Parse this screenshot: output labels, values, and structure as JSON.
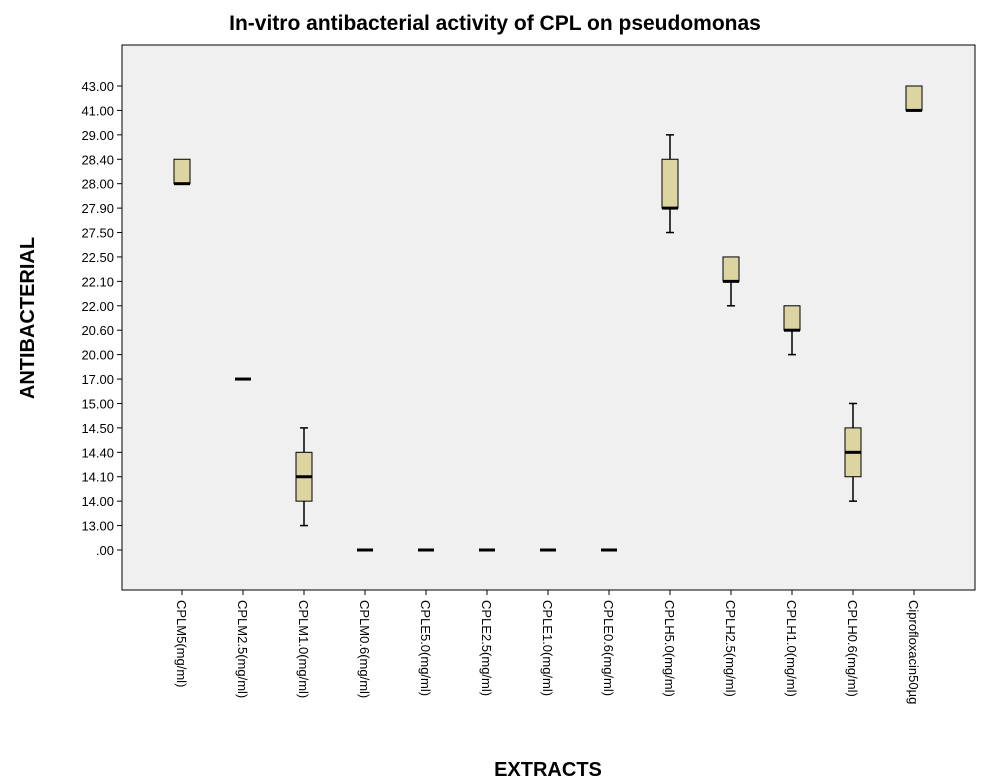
{
  "chart_data": {
    "type": "box",
    "title": "In-vitro antibacterial activity of CPL on pseudomonas",
    "x_label": "EXTRACTS",
    "y_label": "ANTIBACTERIAL",
    "categories": [
      "CPLM5(mg/ml)",
      "CPLM2.5(mg/ml)",
      "CPLM1.0(mg/ml)",
      "CPLM0.6(mg/ml)",
      "CPLE5.0(mg/ml)",
      "CPLE2.5(mg/ml)",
      "CPLE1.0(mg/ml)",
      "CPLE0.6(mg/ml)",
      "CPLH5.0(mg/ml)",
      "CPLH2.5(mg/ml)",
      "CPLH1.0(mg/ml)",
      "CPLH0.6(mg/ml)",
      "Ciprofloxacin50µg"
    ],
    "min": [
      28,
      17,
      13,
      0,
      0,
      0,
      0,
      0,
      27.5,
      22.0,
      20.0,
      14.0,
      41
    ],
    "q1": [
      28,
      17,
      14.0,
      0,
      0,
      0,
      0,
      0,
      27.9,
      22.1,
      20.6,
      14.1,
      41
    ],
    "median": [
      28,
      17,
      14.1,
      0,
      0,
      0,
      0,
      0,
      27.9,
      22.1,
      20.6,
      14.4,
      41
    ],
    "q3": [
      28.4,
      17,
      14.4,
      0,
      0,
      0,
      0,
      0,
      28.4,
      22.5,
      22.0,
      14.5,
      43
    ],
    "max": [
      28.4,
      17,
      14.5,
      0,
      0,
      0,
      0,
      0,
      29.0,
      22.5,
      22.0,
      15.0,
      43
    ],
    "color": "#dcd5a2",
    "yticks": [
      {
        "value": 0,
        "label": ".00"
      },
      {
        "value": 13,
        "label": "13.00"
      },
      {
        "value": 14,
        "label": "14.00"
      },
      {
        "value": 14.1,
        "label": "14.10"
      },
      {
        "value": 14.4,
        "label": "14.40"
      },
      {
        "value": 14.5,
        "label": "14.50"
      },
      {
        "value": 15,
        "label": "15.00"
      },
      {
        "value": 17,
        "label": "17.00"
      },
      {
        "value": 20,
        "label": "20.00"
      },
      {
        "value": 20.6,
        "label": "20.60"
      },
      {
        "value": 22,
        "label": "22.00"
      },
      {
        "value": 22.1,
        "label": "22.10"
      },
      {
        "value": 22.5,
        "label": "22.50"
      },
      {
        "value": 27.5,
        "label": "27.50"
      },
      {
        "value": 27.9,
        "label": "27.90"
      },
      {
        "value": 28,
        "label": "28.00"
      },
      {
        "value": 28.4,
        "label": "28.40"
      },
      {
        "value": 29,
        "label": "29.00"
      },
      {
        "value": 41,
        "label": "41.00"
      },
      {
        "value": 43,
        "label": "43.00"
      }
    ]
  }
}
